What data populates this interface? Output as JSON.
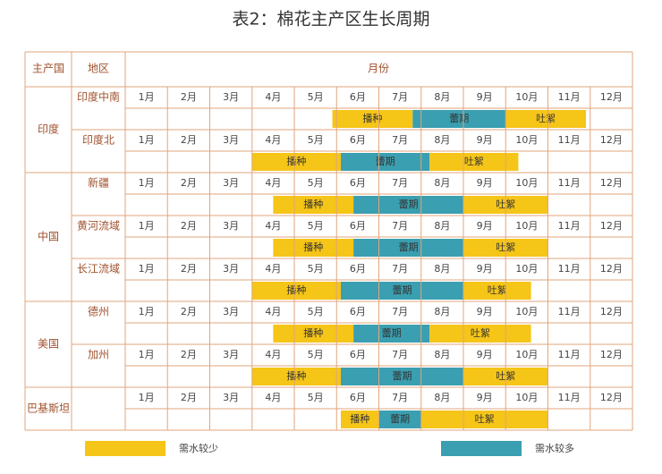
{
  "title": "表2：棉花主产区生长周期",
  "header": {
    "country": "主产国",
    "region": "地区",
    "months_title": "月份"
  },
  "months": [
    "1月",
    "2月",
    "3月",
    "4月",
    "5月",
    "6月",
    "7月",
    "8月",
    "9月",
    "10月",
    "11月",
    "12月"
  ],
  "countries": [
    {
      "name": "印度",
      "regions": [
        {
          "name": "印度中南",
          "phases": [
            {
              "label": "播种",
              "start": 4.9,
              "end": 6.8,
              "color": "#f5c518"
            },
            {
              "label": "蕾期",
              "start": 6.8,
              "end": 9,
              "color": "#3a9fb0"
            },
            {
              "label": "吐絮",
              "start": 9,
              "end": 10.9,
              "color": "#f5c518"
            }
          ]
        },
        {
          "name": "印度北",
          "phases": [
            {
              "label": "播种",
              "start": 3,
              "end": 5.1,
              "color": "#f5c518"
            },
            {
              "label": "蕾期",
              "start": 5.1,
              "end": 7.2,
              "color": "#3a9fb0"
            },
            {
              "label": "吐絮",
              "start": 7.2,
              "end": 9.3,
              "color": "#f5c518"
            }
          ]
        }
      ]
    },
    {
      "name": "中国",
      "regions": [
        {
          "name": "新疆",
          "phases": [
            {
              "label": "播种",
              "start": 3.5,
              "end": 5.4,
              "color": "#f5c518"
            },
            {
              "label": "蕾期",
              "start": 5.4,
              "end": 8,
              "color": "#3a9fb0"
            },
            {
              "label": "吐絮",
              "start": 8,
              "end": 10,
              "color": "#f5c518"
            }
          ]
        },
        {
          "name": "黄河流域",
          "phases": [
            {
              "label": "播种",
              "start": 3.5,
              "end": 5.4,
              "color": "#f5c518"
            },
            {
              "label": "蕾期",
              "start": 5.4,
              "end": 8,
              "color": "#3a9fb0"
            },
            {
              "label": "吐絮",
              "start": 8,
              "end": 10,
              "color": "#f5c518"
            }
          ]
        },
        {
          "name": "长江流域",
          "phases": [
            {
              "label": "播种",
              "start": 3,
              "end": 5.1,
              "color": "#f5c518"
            },
            {
              "label": "蕾期",
              "start": 5.1,
              "end": 8,
              "color": "#3a9fb0"
            },
            {
              "label": "吐絮",
              "start": 8,
              "end": 9.6,
              "color": "#f5c518"
            }
          ]
        }
      ]
    },
    {
      "name": "美国",
      "regions": [
        {
          "name": "德州",
          "phases": [
            {
              "label": "播种",
              "start": 3.5,
              "end": 5.4,
              "color": "#f5c518"
            },
            {
              "label": "蕾期",
              "start": 5.4,
              "end": 7.2,
              "color": "#3a9fb0"
            },
            {
              "label": "吐絮",
              "start": 7.2,
              "end": 9.6,
              "color": "#f5c518"
            }
          ]
        },
        {
          "name": "加州",
          "phases": [
            {
              "label": "播种",
              "start": 3,
              "end": 5.1,
              "color": "#f5c518"
            },
            {
              "label": "蕾期",
              "start": 5.1,
              "end": 8,
              "color": "#3a9fb0"
            },
            {
              "label": "吐絮",
              "start": 8,
              "end": 10,
              "color": "#f5c518"
            }
          ]
        }
      ]
    },
    {
      "name": "巴基斯坦",
      "regions": [
        {
          "phases": [
            {
              "label": "播种",
              "start": 5.1,
              "end": 6,
              "color": "#f5c518"
            },
            {
              "label": "蕾期",
              "start": 6,
              "end": 7,
              "color": "#3a9fb0"
            },
            {
              "label": "吐絮",
              "start": 7,
              "end": 10,
              "color": "#f5c518"
            }
          ]
        }
      ]
    }
  ],
  "legend": [
    {
      "label": "需水较少",
      "color": "#f5c518"
    },
    {
      "label": "需水较多",
      "color": "#3a9fb0"
    }
  ]
}
